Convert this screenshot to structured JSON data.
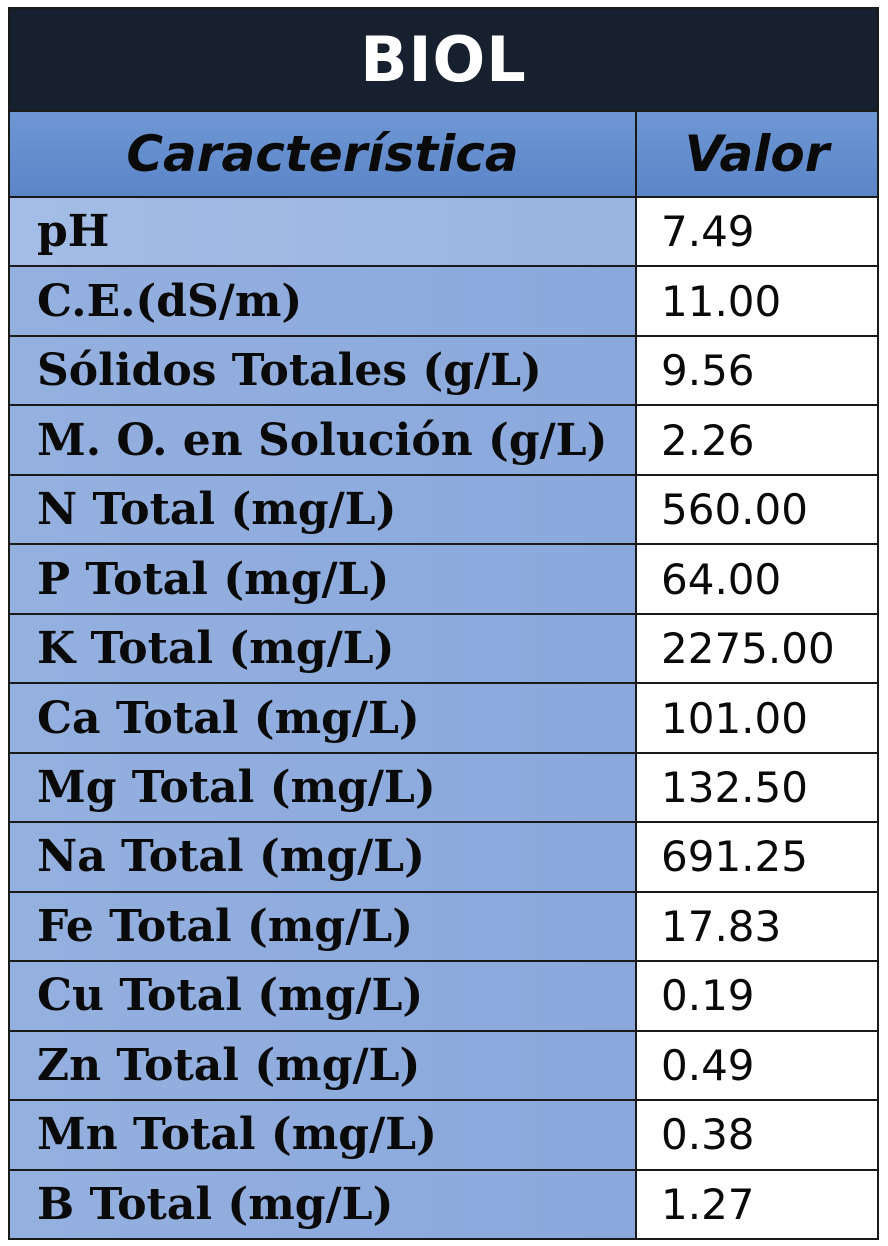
{
  "title": "BIOL",
  "header": {
    "characteristic": "Característica",
    "value": "Valor"
  },
  "rows": [
    {
      "label": "pH",
      "value": "7.49"
    },
    {
      "label": "C.E.(dS/m)",
      "value": "11.00"
    },
    {
      "label": "Sólidos Totales (g/L)",
      "value": "9.56"
    },
    {
      "label": "M. O. en Solución (g/L)",
      "value": "2.26"
    },
    {
      "label": "N Total (mg/L)",
      "value": "560.00"
    },
    {
      "label": "P Total (mg/L)",
      "value": "64.00"
    },
    {
      "label": "K Total (mg/L)",
      "value": "2275.00"
    },
    {
      "label": "Ca Total (mg/L)",
      "value": "101.00"
    },
    {
      "label": "Mg Total (mg/L)",
      "value": "132.50"
    },
    {
      "label": "Na Total (mg/L)",
      "value": "691.25"
    },
    {
      "label": "Fe Total (mg/L)",
      "value": "17.83"
    },
    {
      "label": "Cu Total (mg/L)",
      "value": "0.19"
    },
    {
      "label": "Zn Total (mg/L)",
      "value": "0.49"
    },
    {
      "label": "Mn Total (mg/L)",
      "value": "0.38"
    },
    {
      "label": "B Total (mg/L)",
      "value": "1.27"
    }
  ],
  "colors": {
    "title_bg": "#17202e",
    "header_bg": "#6f97d4",
    "label_bg": "#8aa8dc",
    "value_bg": "#ffffff"
  }
}
